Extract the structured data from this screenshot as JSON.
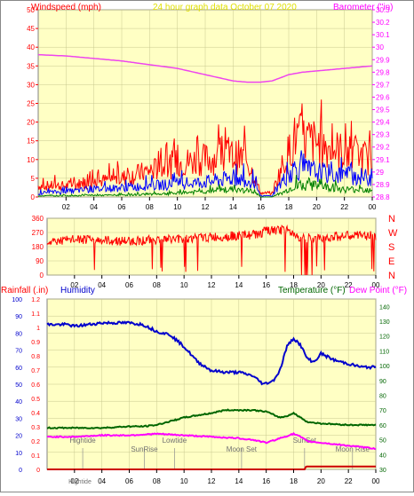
{
  "chart_data": [
    {
      "id": "wind-baro",
      "type": "line",
      "title": "24 hour graph data   October 07 2020",
      "left_axis_label": "Windspeed (mph)",
      "right_axis_label": "Barometer (\"in)",
      "x_tick_labels": [
        "02",
        "04",
        "06",
        "08",
        "10",
        "12",
        "14",
        "16",
        "18",
        "20",
        "22",
        "00"
      ],
      "x_range_hours": [
        0,
        24
      ],
      "left_ylim": [
        0,
        50
      ],
      "left_ticks": [
        "0",
        "5",
        "10",
        "15",
        "20",
        "25",
        "30",
        "35",
        "40",
        "45",
        "50"
      ],
      "right_ylim": [
        28.8,
        30.3
      ],
      "right_ticks": [
        "28.8",
        "28.9",
        "29",
        "29.1",
        "29.2",
        "29.3",
        "29.4",
        "29.5",
        "29.6",
        "29.7",
        "29.8",
        "29.9",
        "30",
        "30.1",
        "30.2",
        "30.3"
      ],
      "grid": true,
      "series": [
        {
          "key": "gust",
          "color": "#ff0000",
          "kind": "wind-noise",
          "points": [
            [
              0,
              3
            ],
            [
              2,
              3
            ],
            [
              4,
              4
            ],
            [
              6,
              5
            ],
            [
              8,
              7
            ],
            [
              10,
              9
            ],
            [
              12,
              10
            ],
            [
              14,
              11
            ],
            [
              15,
              10
            ],
            [
              16,
              1
            ],
            [
              16.8,
              1
            ],
            [
              17.5,
              8
            ],
            [
              18.5,
              16
            ],
            [
              19.5,
              15
            ],
            [
              21,
              13
            ],
            [
              22,
              12
            ],
            [
              23,
              11
            ],
            [
              24,
              10
            ]
          ]
        },
        {
          "key": "average",
          "color": "#0000ff",
          "kind": "wind-noise",
          "points": [
            [
              0,
              1
            ],
            [
              4,
              2
            ],
            [
              8,
              3
            ],
            [
              12,
              4
            ],
            [
              14,
              5
            ],
            [
              15.5,
              4
            ],
            [
              16,
              0.3
            ],
            [
              16.8,
              0.3
            ],
            [
              17.5,
              4
            ],
            [
              18.5,
              8
            ],
            [
              19.5,
              7
            ],
            [
              21,
              6
            ],
            [
              22,
              6
            ],
            [
              24,
              5
            ]
          ]
        },
        {
          "key": "low",
          "color": "#008000",
          "kind": "wind-noise",
          "points": [
            [
              0,
              0.3
            ],
            [
              6,
              0.5
            ],
            [
              10,
              1
            ],
            [
              12,
              1.5
            ],
            [
              14,
              2
            ],
            [
              15.5,
              1.5
            ],
            [
              16,
              0
            ],
            [
              16.8,
              0
            ],
            [
              17.5,
              1
            ],
            [
              18.5,
              3
            ],
            [
              20,
              3
            ],
            [
              22,
              2
            ],
            [
              24,
              2
            ]
          ]
        },
        {
          "key": "barometer",
          "color": "#ee44ee",
          "axis": "right",
          "points": [
            [
              0,
              29.94
            ],
            [
              2,
              29.93
            ],
            [
              4,
              29.91
            ],
            [
              6,
              29.89
            ],
            [
              8,
              29.86
            ],
            [
              10,
              29.83
            ],
            [
              12,
              29.78
            ],
            [
              14,
              29.73
            ],
            [
              15,
              29.72
            ],
            [
              16,
              29.72
            ],
            [
              16.8,
              29.73
            ],
            [
              18,
              29.78
            ],
            [
              19,
              29.8
            ],
            [
              20,
              29.81
            ],
            [
              22,
              29.83
            ],
            [
              24,
              29.85
            ]
          ]
        }
      ]
    },
    {
      "id": "wind-direction",
      "type": "line",
      "ylim": [
        0,
        360
      ],
      "y_ticks": [
        "0",
        "90",
        "180",
        "270",
        "360"
      ],
      "x_tick_labels": [
        "02",
        "04",
        "06",
        "08",
        "10",
        "12",
        "14",
        "16",
        "18",
        "20",
        "22",
        "00"
      ],
      "x_range_hours": [
        0,
        24
      ],
      "right_labels": [
        "N",
        "W",
        "S",
        "E",
        "N"
      ],
      "grid": true,
      "series": [
        {
          "key": "direction",
          "color": "#ff0000",
          "points": [
            [
              0,
              210
            ],
            [
              2,
              225
            ],
            [
              4,
              220
            ],
            [
              6,
              215
            ],
            [
              8,
              225
            ],
            [
              10,
              230
            ],
            [
              12,
              240
            ],
            [
              14,
              250
            ],
            [
              15.5,
              260
            ],
            [
              16,
              280
            ],
            [
              17.5,
              285
            ],
            [
              18.5,
              240
            ],
            [
              19.5,
              230
            ],
            [
              21,
              245
            ],
            [
              22.5,
              250
            ],
            [
              24,
              250
            ]
          ]
        }
      ]
    },
    {
      "id": "rain-humidity-temp",
      "type": "line",
      "left_axis_label": "Rainfall (.in)",
      "humidity_label": "Humidity",
      "temperature_label": "Temperature (°F)",
      "dewpoint_label": "Dew Point (°F)",
      "x_tick_labels": [
        "02",
        "04",
        "06",
        "08",
        "10",
        "12",
        "14",
        "16",
        "18",
        "20",
        "22",
        "00"
      ],
      "x_range_hours": [
        0,
        24
      ],
      "rain_ylim": [
        0,
        1.2
      ],
      "rain_ticks": [
        "0",
        "0.1",
        "0.2",
        "0.3",
        "0.4",
        "0.5",
        "0.6",
        "0.7",
        "0.8",
        "0.9",
        "1",
        "1.1",
        "1.2"
      ],
      "humidity_ylim": [
        0,
        100
      ],
      "humidity_ticks": [
        "0",
        "10",
        "20",
        "30",
        "40",
        "50",
        "60",
        "70",
        "80",
        "90",
        "100"
      ],
      "temp_ylim": [
        30,
        145
      ],
      "temp_ticks": [
        "30",
        "40",
        "50",
        "60",
        "70",
        "80",
        "90",
        "100",
        "110",
        "120",
        "130",
        "140"
      ],
      "grid": true,
      "series": [
        {
          "key": "humidity",
          "color": "#0000cc",
          "axis": "humidity",
          "points": [
            [
              0,
              85
            ],
            [
              1.5,
              85
            ],
            [
              2,
              84
            ],
            [
              3,
              85
            ],
            [
              4,
              86
            ],
            [
              6,
              86
            ],
            [
              7,
              85
            ],
            [
              8,
              81
            ],
            [
              9,
              79
            ],
            [
              10,
              72
            ],
            [
              11,
              63
            ],
            [
              12,
              58
            ],
            [
              13,
              57
            ],
            [
              14,
              57
            ],
            [
              15,
              55
            ],
            [
              15.8,
              50
            ],
            [
              16.5,
              52
            ],
            [
              17,
              58
            ],
            [
              17.5,
              72
            ],
            [
              18,
              77
            ],
            [
              18.5,
              73
            ],
            [
              19,
              65
            ],
            [
              19.5,
              63
            ],
            [
              20,
              68
            ],
            [
              20.5,
              66
            ],
            [
              21,
              64
            ],
            [
              22,
              62
            ],
            [
              23,
              60
            ],
            [
              24,
              60
            ]
          ]
        },
        {
          "key": "temperature",
          "color": "#006600",
          "axis": "temp",
          "points": [
            [
              0,
              58
            ],
            [
              2,
              58
            ],
            [
              4,
              58
            ],
            [
              6,
              59
            ],
            [
              7,
              59
            ],
            [
              8,
              60
            ],
            [
              10,
              65
            ],
            [
              12,
              68
            ],
            [
              13,
              70
            ],
            [
              14,
              70
            ],
            [
              15,
              70
            ],
            [
              16,
              69
            ],
            [
              17,
              65
            ],
            [
              17.5,
              66
            ],
            [
              18,
              68
            ],
            [
              18.5,
              65
            ],
            [
              19,
              62
            ],
            [
              20,
              61
            ],
            [
              22,
              60
            ],
            [
              24,
              60
            ]
          ]
        },
        {
          "key": "dewpoint",
          "color": "#ff00ff",
          "axis": "temp",
          "points": [
            [
              0,
              52
            ],
            [
              2,
              52
            ],
            [
              4,
              53
            ],
            [
              6,
              53
            ],
            [
              8,
              54
            ],
            [
              10,
              53
            ],
            [
              12,
              52
            ],
            [
              14,
              51
            ],
            [
              15,
              50
            ],
            [
              16,
              48
            ],
            [
              17,
              51
            ],
            [
              18,
              54
            ],
            [
              18.5,
              52
            ],
            [
              19,
              49
            ],
            [
              20,
              48
            ],
            [
              22,
              46
            ],
            [
              24,
              44
            ]
          ]
        },
        {
          "key": "rainfall",
          "color": "#cc0000",
          "axis": "rain",
          "points": [
            [
              0,
              0
            ],
            [
              18.8,
              0
            ],
            [
              18.9,
              0.02
            ],
            [
              24,
              0.02
            ]
          ]
        }
      ],
      "annotations": [
        {
          "label": "Hightide",
          "x": 2.6
        },
        {
          "label": "SunRise",
          "x": 7.1
        },
        {
          "label": "Lowtide",
          "x": 9.3
        },
        {
          "label": "Moon Set",
          "x": 14.2
        },
        {
          "label": "SunSet",
          "x": 18.8
        },
        {
          "label": "Moon Rise",
          "x": 22.3
        }
      ],
      "x_overlay_labels": [
        {
          "label": "Hightide",
          "x": 2.4
        }
      ]
    }
  ]
}
